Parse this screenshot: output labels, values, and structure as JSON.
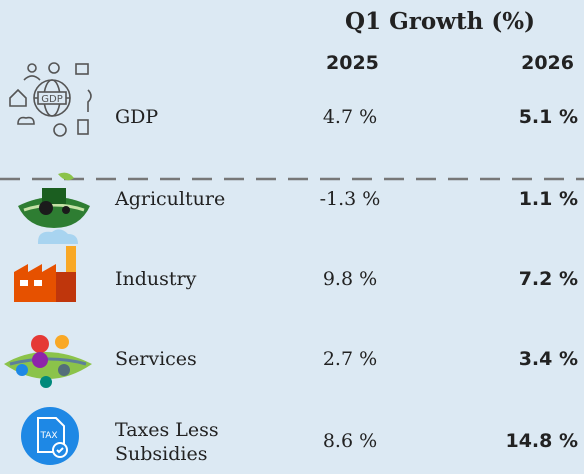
{
  "header": {
    "title": "Q1 Growth (%)",
    "columns": [
      "2025",
      "2026"
    ]
  },
  "table": {
    "rows": [
      [
        "GDP",
        "4.7 %",
        "5.1 %"
      ],
      [
        "Agriculture",
        "-1.3 %",
        "1.1 %"
      ],
      [
        "Industry",
        "9.8 %",
        "7.2 %"
      ],
      [
        "Services",
        "2.7 %",
        "3.4 %"
      ],
      [
        "Taxes Less Subsidies",
        "8.6 %",
        "14.8 %"
      ]
    ]
  }
}
